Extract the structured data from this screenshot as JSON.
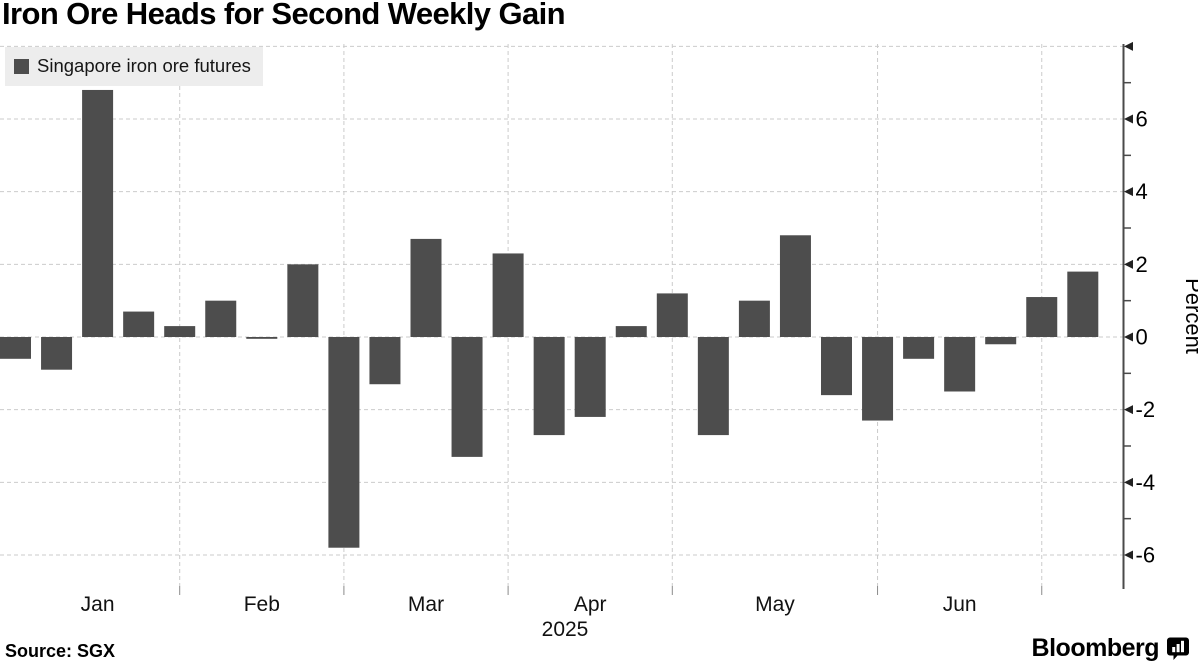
{
  "title": "Iron Ore Heads for Second Weekly Gain",
  "legend": {
    "label": "Singapore iron ore futures",
    "swatch_color": "#4d4d4d"
  },
  "source": {
    "text": "Source: SGX"
  },
  "branding": {
    "name": "Bloomberg",
    "icon": "bloomberg-chart-bubble-icon"
  },
  "chart_data": {
    "type": "bar",
    "title": "Iron Ore Heads for Second Weekly Gain",
    "series_name": "Singapore iron ore futures",
    "bar_color": "#4d4d4d",
    "xlabel": "",
    "ylabel": "Percent",
    "year_label": "2025",
    "x_dates": [
      "2025-01-03",
      "2025-01-10",
      "2025-01-17",
      "2025-01-24",
      "2025-01-31",
      "2025-02-07",
      "2025-02-14",
      "2025-02-21",
      "2025-02-28",
      "2025-03-07",
      "2025-03-14",
      "2025-03-21",
      "2025-03-28",
      "2025-04-04",
      "2025-04-11",
      "2025-04-18",
      "2025-04-25",
      "2025-05-02",
      "2025-05-09",
      "2025-05-16",
      "2025-05-23",
      "2025-05-30",
      "2025-06-06",
      "2025-06-13",
      "2025-06-20",
      "2025-06-27",
      "2025-07-04"
    ],
    "values": [
      -0.6,
      -0.9,
      6.8,
      0.7,
      0.3,
      1.0,
      -0.05,
      2.0,
      -5.8,
      -1.3,
      2.7,
      -3.3,
      2.3,
      -2.7,
      -2.2,
      0.3,
      1.2,
      -2.7,
      1.0,
      2.8,
      -1.6,
      -2.3,
      -0.6,
      -1.5,
      -0.2,
      1.1,
      1.8
    ],
    "unit": "percent (weekly change)",
    "month_labels": [
      "Jan",
      "Feb",
      "Mar",
      "Apr",
      "May",
      "Jun"
    ],
    "month_boundary_week_indices": [
      4,
      8,
      12,
      16,
      21,
      25
    ],
    "ylim": [
      -6.9,
      8.1
    ],
    "ytick_major_values": [
      8,
      6,
      4,
      2,
      0,
      -2,
      -4,
      -6
    ],
    "ytick_labeled_values": [
      6,
      4,
      2,
      0,
      -2,
      -4,
      -6
    ],
    "ytick_minor_values": [
      7,
      5,
      3,
      1,
      -1,
      -3,
      -5
    ],
    "grid": "dashed",
    "legend_position": "top-left",
    "axis_side": "right",
    "grid_color": "#cbcbcb",
    "axis_color": "#4a4a4a",
    "text_color": "#111111"
  }
}
